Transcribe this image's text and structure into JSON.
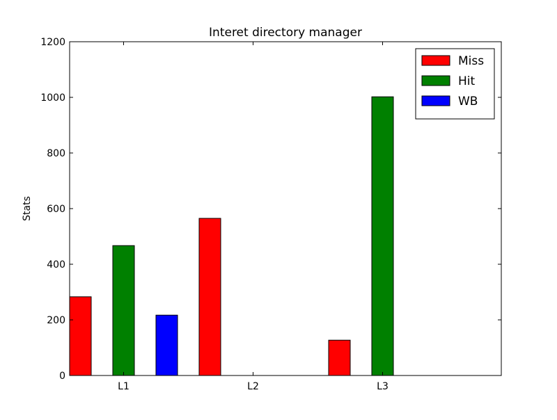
{
  "chart_data": {
    "type": "bar",
    "title": "Interet directory manager",
    "xlabel": "",
    "ylabel": "Stats",
    "ylim": [
      0,
      1200
    ],
    "yticks": [
      0,
      200,
      400,
      600,
      800,
      1000,
      1200
    ],
    "categories": [
      "L1",
      "L2",
      "L3"
    ],
    "series": [
      {
        "name": "Miss",
        "color": "#ff0000",
        "values": [
          283,
          565,
          127
        ]
      },
      {
        "name": "Hit",
        "color": "#008000",
        "values": [
          467,
          0,
          1002
        ]
      },
      {
        "name": "WB",
        "color": "#0000ff",
        "values": [
          217,
          0,
          0
        ]
      }
    ],
    "legend_position": "top-right",
    "grid": false
  }
}
